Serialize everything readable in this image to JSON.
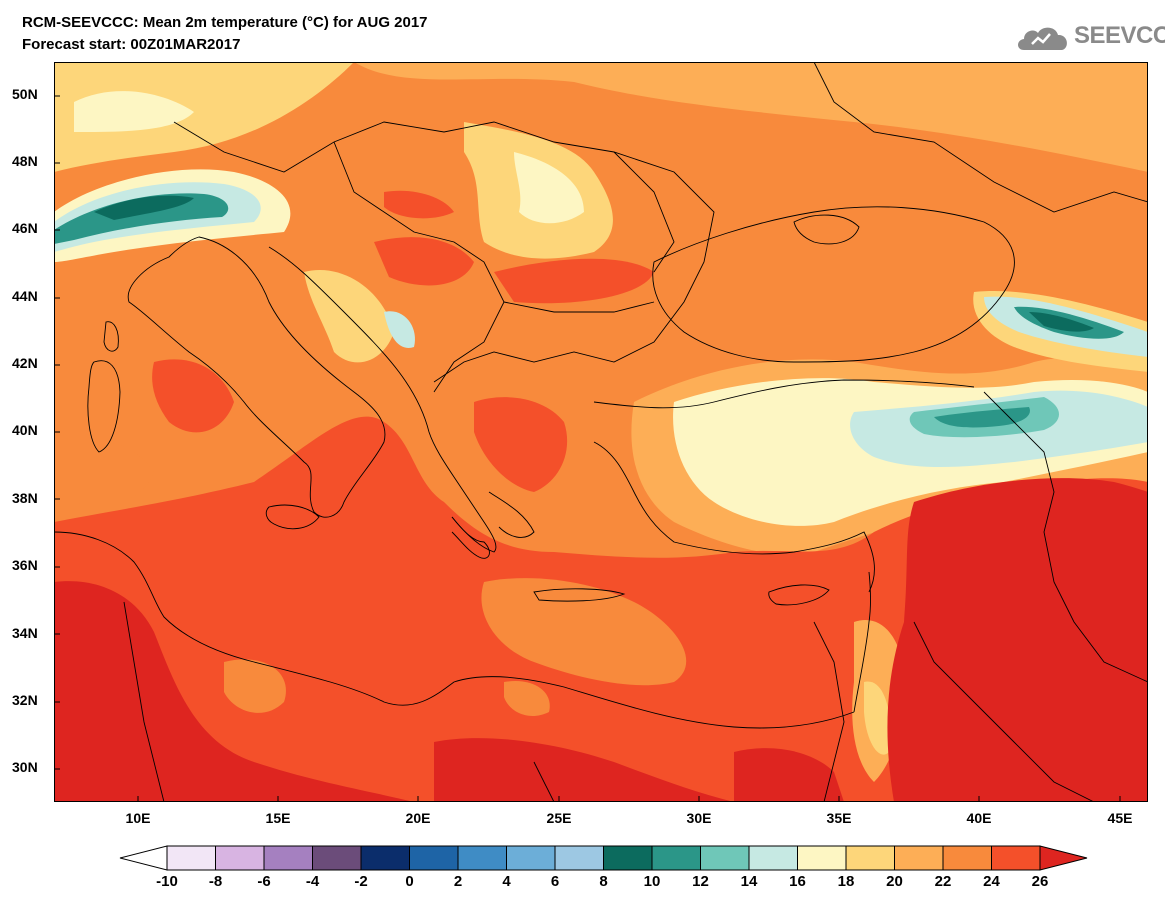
{
  "header": {
    "title": "RCM-SEEVCCC: Mean 2m temperature (°C) for AUG 2017",
    "subtitle": "Forecast start: 00Z01MAR2017",
    "logo_text": "SEEVCCC"
  },
  "map": {
    "lat_labels": [
      "50N",
      "48N",
      "46N",
      "44N",
      "42N",
      "40N",
      "38N",
      "36N",
      "34N",
      "32N",
      "30N"
    ],
    "lon_labels": [
      "10E",
      "15E",
      "20E",
      "25E",
      "30E",
      "35E",
      "40E",
      "45E"
    ],
    "lon_range": [
      7,
      46
    ],
    "lat_range": [
      29,
      51
    ]
  },
  "colorbar": {
    "ticks": [
      "-10",
      "-8",
      "-6",
      "-4",
      "-2",
      "0",
      "2",
      "4",
      "6",
      "8",
      "10",
      "12",
      "14",
      "16",
      "18",
      "20",
      "22",
      "24",
      "26"
    ],
    "colors": [
      "#ffffff",
      "#f2e6f6",
      "#d8b4e2",
      "#a580c0",
      "#6b4c7a",
      "#0b2d6b",
      "#1e64a6",
      "#3f8cc5",
      "#6caed8",
      "#9dc8e3",
      "#0c6b5e",
      "#2b9688",
      "#6fc7b8",
      "#c6e9e3",
      "#fdf6c3",
      "#fdd67a",
      "#fdae56",
      "#f88a3c",
      "#f4502a",
      "#de2520"
    ],
    "units": "°C"
  }
}
